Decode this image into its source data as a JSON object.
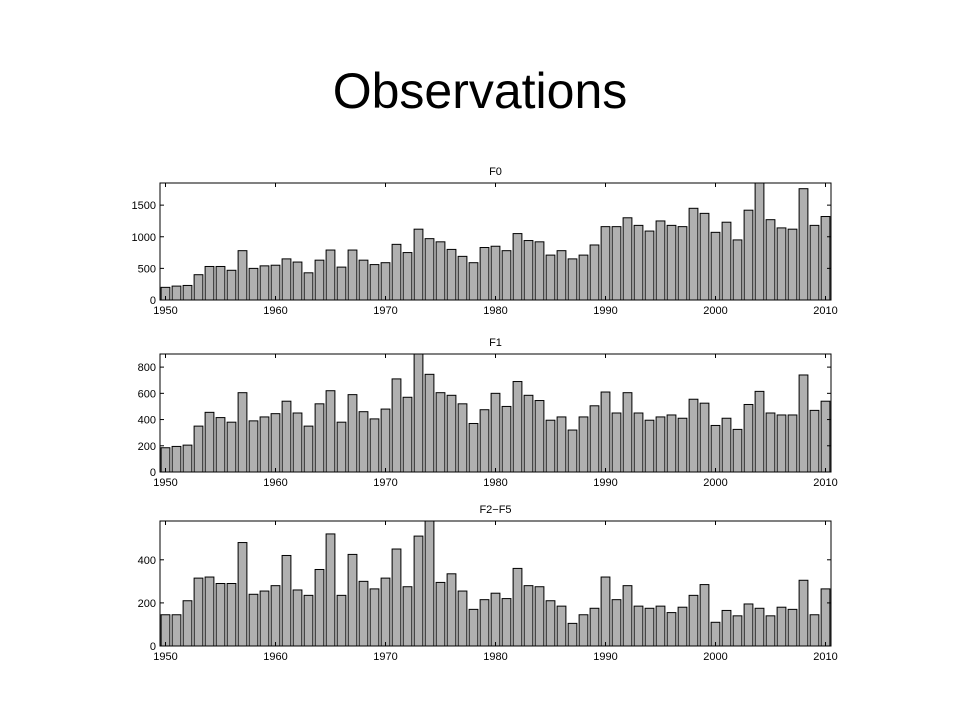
{
  "slide": {
    "title": "Observations"
  },
  "colors": {
    "bar_fill": "#b0b0b0",
    "bar_stroke": "#000000",
    "axes": "#000000"
  },
  "chart_data": [
    {
      "type": "bar",
      "title": "F0",
      "xlabel": "",
      "ylabel": "",
      "xlim": [
        1949.5,
        2010.5
      ],
      "ylim": [
        0,
        1850
      ],
      "xticks": [
        1950,
        1960,
        1970,
        1980,
        1990,
        2000,
        2010
      ],
      "yticks": [
        0,
        500,
        1000,
        1500
      ],
      "grid": false,
      "x": [
        1950,
        1951,
        1952,
        1953,
        1954,
        1955,
        1956,
        1957,
        1958,
        1959,
        1960,
        1961,
        1962,
        1963,
        1964,
        1965,
        1966,
        1967,
        1968,
        1969,
        1970,
        1971,
        1972,
        1973,
        1974,
        1975,
        1976,
        1977,
        1978,
        1979,
        1980,
        1981,
        1982,
        1983,
        1984,
        1985,
        1986,
        1987,
        1988,
        1989,
        1990,
        1991,
        1992,
        1993,
        1994,
        1995,
        1996,
        1997,
        1998,
        1999,
        2000,
        2001,
        2002,
        2003,
        2004,
        2005,
        2006,
        2007,
        2008,
        2009,
        2010
      ],
      "values": [
        200,
        220,
        230,
        400,
        530,
        530,
        470,
        780,
        500,
        540,
        550,
        650,
        600,
        430,
        630,
        790,
        520,
        790,
        630,
        560,
        590,
        880,
        750,
        1120,
        970,
        920,
        800,
        690,
        590,
        830,
        850,
        780,
        1050,
        940,
        920,
        710,
        780,
        650,
        710,
        870,
        1160,
        1160,
        1300,
        1180,
        1090,
        1250,
        1180,
        1160,
        1450,
        1370,
        1070,
        1230,
        950,
        1420,
        1850,
        1270,
        1140,
        1120,
        1760,
        1180,
        1320
      ]
    },
    {
      "type": "bar",
      "title": "F1",
      "xlabel": "",
      "ylabel": "",
      "xlim": [
        1949.5,
        2010.5
      ],
      "ylim": [
        0,
        900
      ],
      "xticks": [
        1950,
        1960,
        1970,
        1980,
        1990,
        2000,
        2010
      ],
      "yticks": [
        0,
        200,
        400,
        600,
        800
      ],
      "grid": false,
      "x": [
        1950,
        1951,
        1952,
        1953,
        1954,
        1955,
        1956,
        1957,
        1958,
        1959,
        1960,
        1961,
        1962,
        1963,
        1964,
        1965,
        1966,
        1967,
        1968,
        1969,
        1970,
        1971,
        1972,
        1973,
        1974,
        1975,
        1976,
        1977,
        1978,
        1979,
        1980,
        1981,
        1982,
        1983,
        1984,
        1985,
        1986,
        1987,
        1988,
        1989,
        1990,
        1991,
        1992,
        1993,
        1994,
        1995,
        1996,
        1997,
        1998,
        1999,
        2000,
        2001,
        2002,
        2003,
        2004,
        2005,
        2006,
        2007,
        2008,
        2009,
        2010
      ],
      "values": [
        185,
        195,
        205,
        350,
        455,
        415,
        380,
        605,
        390,
        420,
        445,
        540,
        450,
        350,
        520,
        620,
        380,
        590,
        460,
        405,
        480,
        710,
        570,
        900,
        745,
        605,
        585,
        520,
        370,
        475,
        600,
        500,
        690,
        585,
        545,
        395,
        420,
        320,
        420,
        505,
        610,
        450,
        605,
        450,
        395,
        420,
        435,
        410,
        555,
        525,
        355,
        410,
        325,
        515,
        615,
        450,
        435,
        435,
        740,
        470,
        540
      ]
    },
    {
      "type": "bar",
      "title": "F2−F5",
      "xlabel": "",
      "ylabel": "",
      "xlim": [
        1949.5,
        2010.5
      ],
      "ylim": [
        0,
        580
      ],
      "xticks": [
        1950,
        1960,
        1970,
        1980,
        1990,
        2000,
        2010
      ],
      "yticks": [
        0,
        200,
        400
      ],
      "grid": false,
      "x": [
        1950,
        1951,
        1952,
        1953,
        1954,
        1955,
        1956,
        1957,
        1958,
        1959,
        1960,
        1961,
        1962,
        1963,
        1964,
        1965,
        1966,
        1967,
        1968,
        1969,
        1970,
        1971,
        1972,
        1973,
        1974,
        1975,
        1976,
        1977,
        1978,
        1979,
        1980,
        1981,
        1982,
        1983,
        1984,
        1985,
        1986,
        1987,
        1988,
        1989,
        1990,
        1991,
        1992,
        1993,
        1994,
        1995,
        1996,
        1997,
        1998,
        1999,
        2000,
        2001,
        2002,
        2003,
        2004,
        2005,
        2006,
        2007,
        2008,
        2009,
        2010
      ],
      "values": [
        145,
        145,
        210,
        315,
        320,
        290,
        290,
        480,
        240,
        255,
        280,
        420,
        260,
        235,
        355,
        520,
        235,
        425,
        300,
        265,
        315,
        450,
        275,
        510,
        580,
        295,
        335,
        255,
        170,
        215,
        245,
        220,
        360,
        280,
        275,
        210,
        185,
        105,
        145,
        175,
        320,
        215,
        280,
        185,
        175,
        185,
        155,
        180,
        235,
        285,
        110,
        165,
        140,
        195,
        175,
        140,
        180,
        170,
        305,
        145,
        265
      ]
    }
  ]
}
